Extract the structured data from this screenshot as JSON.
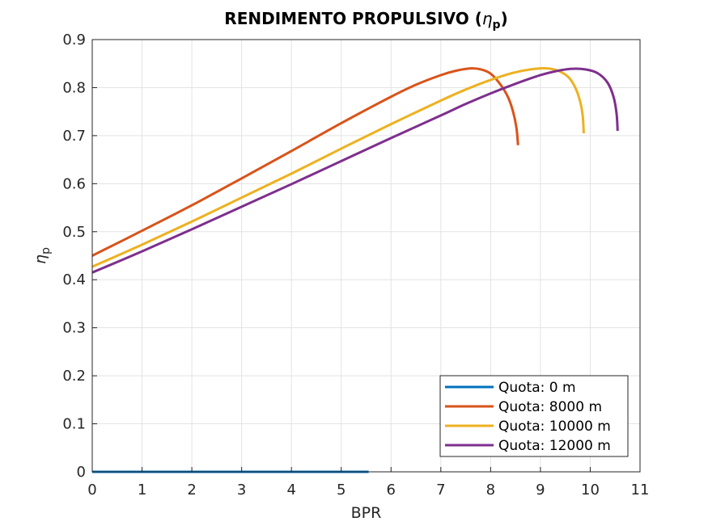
{
  "chart_data": {
    "type": "line",
    "title_prefix": "RENDIMENTO PROPULSIVO (",
    "title_symbol": "η",
    "title_subscript": "p",
    "title_suffix": ")",
    "xlabel": "BPR",
    "ylabel_symbol": "η",
    "ylabel_subscript": "p",
    "xlim": [
      0,
      11
    ],
    "ylim": [
      0,
      0.9
    ],
    "x_ticks": [
      0,
      1,
      2,
      3,
      4,
      5,
      6,
      7,
      8,
      9,
      10,
      11
    ],
    "y_ticks": [
      0,
      0.1,
      0.2,
      0.3,
      0.4,
      0.5,
      0.6,
      0.7,
      0.8,
      0.9
    ],
    "x_tick_labels": [
      "0",
      "1",
      "2",
      "3",
      "4",
      "5",
      "6",
      "7",
      "8",
      "9",
      "10",
      "11"
    ],
    "y_tick_labels": [
      "0",
      "0.1",
      "0.2",
      "0.3",
      "0.4",
      "0.5",
      "0.6",
      "0.7",
      "0.8",
      "0.9"
    ],
    "grid": true,
    "legend_position": "bottom-right",
    "series": [
      {
        "name": "Quota: 0 m",
        "color": "#0072BD",
        "x": [
          0,
          1,
          2,
          3,
          4,
          5,
          5.55
        ],
        "y": [
          0,
          0,
          0,
          0,
          0,
          0,
          0
        ]
      },
      {
        "name": "Quota: 8000 m",
        "color": "#D95319",
        "x": [
          0,
          1,
          2,
          3,
          4,
          5,
          6,
          6.5,
          7,
          7.3,
          7.6,
          7.8,
          8.0,
          8.2,
          8.35,
          8.45,
          8.52,
          8.55
        ],
        "y": [
          0.45,
          0.502,
          0.555,
          0.611,
          0.668,
          0.726,
          0.781,
          0.806,
          0.826,
          0.835,
          0.84,
          0.838,
          0.829,
          0.806,
          0.78,
          0.75,
          0.715,
          0.68
        ]
      },
      {
        "name": "Quota: 10000 m",
        "color": "#EDB120",
        "x": [
          0,
          1,
          2,
          3,
          4,
          5,
          6,
          7,
          7.5,
          8,
          8.5,
          9.0,
          9.3,
          9.55,
          9.7,
          9.8,
          9.85,
          9.87
        ],
        "y": [
          0.427,
          0.473,
          0.521,
          0.571,
          0.621,
          0.673,
          0.724,
          0.773,
          0.796,
          0.816,
          0.832,
          0.84,
          0.837,
          0.823,
          0.8,
          0.77,
          0.74,
          0.705
        ]
      },
      {
        "name": "Quota: 12000 m",
        "color": "#7E2F8E",
        "x": [
          0,
          1,
          2,
          3,
          4,
          5,
          6,
          7,
          7.5,
          8,
          8.5,
          9.0,
          9.3,
          9.6,
          9.9,
          10.15,
          10.35,
          10.47,
          10.53,
          10.55
        ],
        "y": [
          0.415,
          0.459,
          0.505,
          0.552,
          0.599,
          0.647,
          0.695,
          0.742,
          0.766,
          0.788,
          0.808,
          0.826,
          0.834,
          0.839,
          0.838,
          0.83,
          0.81,
          0.78,
          0.745,
          0.71
        ]
      }
    ]
  }
}
